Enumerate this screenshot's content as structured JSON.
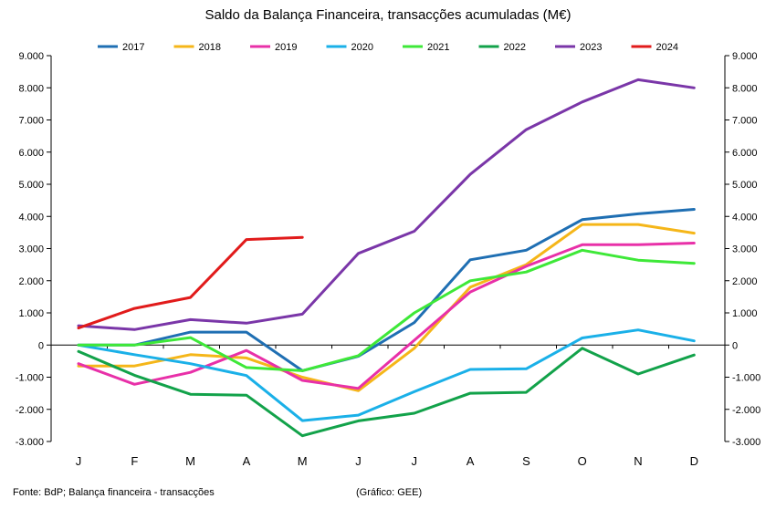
{
  "chart_data": {
    "type": "line",
    "title": "Saldo da Balança Financeira, transacções acumuladas (M€)",
    "xlabel": "",
    "ylabel": "",
    "categories": [
      "J",
      "F",
      "M",
      "A",
      "M",
      "J",
      "J",
      "A",
      "S",
      "O",
      "N",
      "D"
    ],
    "ylim": [
      -3000,
      9000
    ],
    "yticks": [
      -3000,
      -2000,
      -1000,
      0,
      1000,
      2000,
      3000,
      4000,
      5000,
      6000,
      7000,
      8000,
      9000
    ],
    "ytick_labels": [
      "-3.000",
      "-2.000",
      "-1.000",
      "0",
      "1.000",
      "2.000",
      "3.000",
      "4.000",
      "5.000",
      "6.000",
      "7.000",
      "8.000",
      "9.000"
    ],
    "legend_position": "top",
    "secondary_y_axis_mirrored": true,
    "series": [
      {
        "name": "2017",
        "color": "#1f6fb3",
        "values": [
          0,
          0,
          400,
          400,
          -800,
          -350,
          700,
          2650,
          2950,
          3900,
          4080,
          4220
        ]
      },
      {
        "name": "2018",
        "color": "#f5b619",
        "values": [
          -650,
          -650,
          -300,
          -400,
          -1000,
          -1420,
          -100,
          1800,
          2500,
          3750,
          3750,
          3480
        ]
      },
      {
        "name": "2019",
        "color": "#e830a8",
        "values": [
          -580,
          -1220,
          -850,
          -170,
          -1100,
          -1350,
          150,
          1650,
          2450,
          3120,
          3120,
          3170
        ]
      },
      {
        "name": "2020",
        "color": "#1ab0e8",
        "values": [
          0,
          -300,
          -580,
          -950,
          -2350,
          -2180,
          -1450,
          -760,
          -740,
          220,
          470,
          130
        ]
      },
      {
        "name": "2021",
        "color": "#3ee838",
        "values": [
          0,
          0,
          230,
          -700,
          -800,
          -330,
          1000,
          2000,
          2270,
          2950,
          2640,
          2540
        ]
      },
      {
        "name": "2022",
        "color": "#12a24a",
        "values": [
          -200,
          -940,
          -1530,
          -1560,
          -2820,
          -2360,
          -2120,
          -1500,
          -1470,
          -100,
          -900,
          -310
        ]
      },
      {
        "name": "2023",
        "color": "#7a36a8",
        "values": [
          600,
          480,
          790,
          680,
          960,
          2850,
          3540,
          5310,
          6700,
          7560,
          8250,
          8000
        ]
      },
      {
        "name": "2024",
        "color": "#e11b1b",
        "values": [
          530,
          1140,
          1480,
          3280,
          3350,
          null,
          null,
          null,
          null,
          null,
          null,
          null
        ]
      }
    ]
  },
  "footer": {
    "source": "Fonte: BdP; Balança financeira - transacções",
    "credit": "(Gráfico: GEE)"
  }
}
